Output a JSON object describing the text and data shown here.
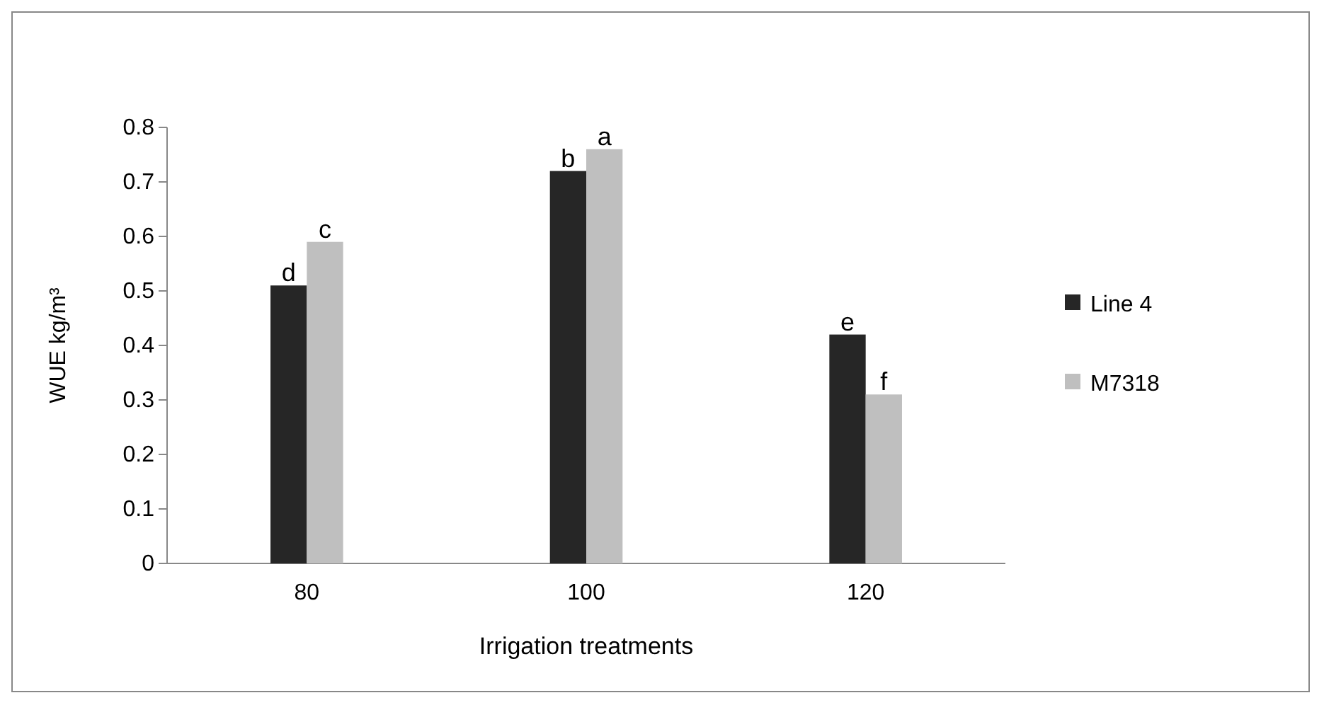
{
  "chart_data": {
    "type": "bar",
    "xlabel": "Irrigation treatments",
    "ylabel": "WUE kg/m³",
    "categories": [
      "80",
      "100",
      "120"
    ],
    "series": [
      {
        "name": "Line 4",
        "color": "#262626",
        "values": [
          0.51,
          0.72,
          0.42
        ]
      },
      {
        "name": "M7318",
        "color": "#bfbfbf",
        "values": [
          0.59,
          0.76,
          0.31
        ]
      }
    ],
    "ylim": [
      0,
      0.8
    ],
    "yticks": [
      0,
      0.1,
      0.2,
      0.3,
      0.4,
      0.5,
      0.6,
      0.7,
      0.8
    ],
    "legend": "right",
    "grid": false,
    "annotations": [
      {
        "text": "d",
        "x": "80",
        "y": 0.51
      },
      {
        "text": "c",
        "x": "80",
        "y": 0.59
      },
      {
        "text": "b",
        "x": "100",
        "y": 0.72
      },
      {
        "text": "a",
        "x": "100",
        "y": 0.76
      },
      {
        "text": "e",
        "x": "120",
        "y": 0.42
      },
      {
        "text": "f",
        "x": "120",
        "y": 0.31
      }
    ]
  }
}
